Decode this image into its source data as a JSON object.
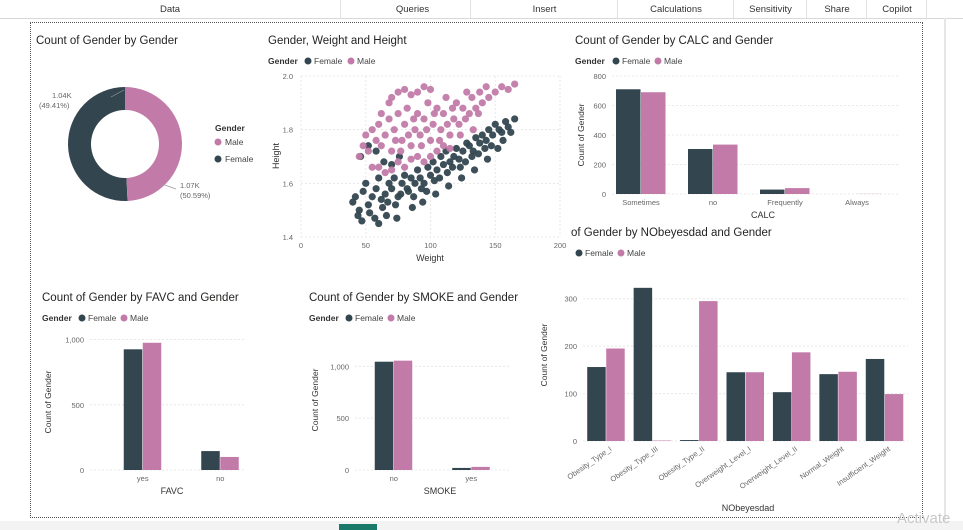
{
  "ribbon": {
    "tabs": [
      "Data",
      "Queries",
      "Insert",
      "Calculations",
      "Sensitivity",
      "Share",
      "Copilot"
    ]
  },
  "colors": {
    "female": "#33464f",
    "male": "#c27ba8",
    "grid": "#e8e8e8",
    "axis": "#666666"
  },
  "legend": {
    "title": "Gender",
    "female": "Female",
    "male": "Male"
  },
  "watermark": "Activate",
  "charts": {
    "donut": {
      "title": "Count of Gender by Gender",
      "male_label": "1.04K",
      "male_pct": "(49.41%)",
      "female_label": "1.07K",
      "female_pct": "(50.59%)"
    },
    "scatter": {
      "title": "Gender, Weight and Height",
      "xlabel": "Weight",
      "ylabel": "Height"
    },
    "calc": {
      "title": "Count of Gender by CALC and Gender",
      "xlabel": "CALC",
      "ylabel": "Count of Gender"
    },
    "favc": {
      "title": "Count of Gender by FAVC and Gender",
      "xlabel": "FAVC",
      "ylabel": "Count of Gender"
    },
    "smoke": {
      "title": "Count of Gender by SMOKE and Gender",
      "xlabel": "SMOKE",
      "ylabel": "Count of Gender"
    },
    "nob": {
      "title": "of Gender by NObeyesdad and Gender",
      "xlabel": "NObeyesdad",
      "ylabel": "Count of Gender"
    }
  },
  "chart_data": [
    {
      "type": "pie",
      "title": "Count of Gender by Gender",
      "categories": [
        "Male",
        "Female"
      ],
      "values": [
        1040,
        1070
      ],
      "legend": "right"
    },
    {
      "type": "scatter",
      "title": "Gender, Weight and Height",
      "xlabel": "Weight",
      "ylabel": "Height",
      "xlim": [
        0,
        200
      ],
      "ylim": [
        1.4,
        2.0
      ],
      "xticks": [
        0,
        50,
        100,
        150,
        200
      ],
      "yticks": [
        1.4,
        1.6,
        1.8,
        2.0
      ],
      "series": [
        {
          "name": "Female",
          "points": [
            [
              40,
              1.53
            ],
            [
              42,
              1.55
            ],
            [
              45,
              1.5
            ],
            [
              48,
              1.57
            ],
            [
              50,
              1.6
            ],
            [
              52,
              1.52
            ],
            [
              55,
              1.55
            ],
            [
              58,
              1.58
            ],
            [
              60,
              1.62
            ],
            [
              62,
              1.54
            ],
            [
              65,
              1.56
            ],
            [
              68,
              1.6
            ],
            [
              70,
              1.58
            ],
            [
              72,
              1.62
            ],
            [
              75,
              1.55
            ],
            [
              78,
              1.6
            ],
            [
              80,
              1.63
            ],
            [
              82,
              1.58
            ],
            [
              85,
              1.62
            ],
            [
              88,
              1.6
            ],
            [
              90,
              1.65
            ],
            [
              92,
              1.62
            ],
            [
              95,
              1.6
            ],
            [
              98,
              1.66
            ],
            [
              100,
              1.63
            ],
            [
              102,
              1.68
            ],
            [
              105,
              1.65
            ],
            [
              108,
              1.7
            ],
            [
              110,
              1.67
            ],
            [
              112,
              1.72
            ],
            [
              115,
              1.68
            ],
            [
              118,
              1.7
            ],
            [
              120,
              1.73
            ],
            [
              122,
              1.69
            ],
            [
              125,
              1.72
            ],
            [
              128,
              1.75
            ],
            [
              130,
              1.74
            ],
            [
              133,
              1.72
            ],
            [
              135,
              1.77
            ],
            [
              138,
              1.75
            ],
            [
              140,
              1.78
            ],
            [
              143,
              1.76
            ],
            [
              145,
              1.8
            ],
            [
              148,
              1.78
            ],
            [
              150,
              1.82
            ],
            [
              153,
              1.8
            ],
            [
              155,
              1.79
            ],
            [
              158,
              1.83
            ],
            [
              160,
              1.81
            ],
            [
              44,
              1.48
            ],
            [
              47,
              1.46
            ],
            [
              53,
              1.49
            ],
            [
              57,
              1.47
            ],
            [
              63,
              1.51
            ],
            [
              67,
              1.53
            ],
            [
              73,
              1.52
            ],
            [
              77,
              1.56
            ],
            [
              83,
              1.57
            ],
            [
              87,
              1.55
            ],
            [
              93,
              1.58
            ],
            [
              97,
              1.57
            ],
            [
              103,
              1.61
            ],
            [
              107,
              1.62
            ],
            [
              113,
              1.64
            ],
            [
              117,
              1.66
            ],
            [
              123,
              1.66
            ],
            [
              127,
              1.68
            ],
            [
              132,
              1.7
            ],
            [
              137,
              1.71
            ],
            [
              142,
              1.73
            ],
            [
              147,
              1.74
            ],
            [
              46,
              1.7
            ],
            [
              52,
              1.74
            ],
            [
              58,
              1.72
            ],
            [
              64,
              1.68
            ],
            [
              70,
              1.67
            ],
            [
              76,
              1.7
            ],
            [
              60,
              1.45
            ],
            [
              66,
              1.48
            ],
            [
              74,
              1.47
            ],
            [
              86,
              1.51
            ],
            [
              94,
              1.53
            ],
            [
              104,
              1.56
            ],
            [
              114,
              1.59
            ],
            [
              124,
              1.62
            ],
            [
              134,
              1.65
            ],
            [
              144,
              1.69
            ],
            [
              152,
              1.73
            ],
            [
              156,
              1.76
            ],
            [
              162,
              1.79
            ],
            [
              165,
              1.84
            ]
          ]
        },
        {
          "name": "Male",
          "points": [
            [
              45,
              1.7
            ],
            [
              48,
              1.74
            ],
            [
              50,
              1.78
            ],
            [
              52,
              1.72
            ],
            [
              55,
              1.8
            ],
            [
              58,
              1.76
            ],
            [
              60,
              1.82
            ],
            [
              62,
              1.74
            ],
            [
              65,
              1.78
            ],
            [
              68,
              1.84
            ],
            [
              70,
              1.72
            ],
            [
              72,
              1.8
            ],
            [
              75,
              1.86
            ],
            [
              78,
              1.76
            ],
            [
              80,
              1.82
            ],
            [
              82,
              1.88
            ],
            [
              85,
              1.74
            ],
            [
              88,
              1.8
            ],
            [
              90,
              1.86
            ],
            [
              92,
              1.78
            ],
            [
              95,
              1.84
            ],
            [
              98,
              1.9
            ],
            [
              100,
              1.76
            ],
            [
              102,
              1.82
            ],
            [
              105,
              1.88
            ],
            [
              108,
              1.8
            ],
            [
              110,
              1.86
            ],
            [
              112,
              1.92
            ],
            [
              115,
              1.78
            ],
            [
              118,
              1.84
            ],
            [
              120,
              1.9
            ],
            [
              122,
              1.82
            ],
            [
              125,
              1.88
            ],
            [
              128,
              1.94
            ],
            [
              130,
              1.86
            ],
            [
              132,
              1.92
            ],
            [
              135,
              1.88
            ],
            [
              138,
              1.94
            ],
            [
              140,
              1.9
            ],
            [
              143,
              1.96
            ],
            [
              145,
              1.92
            ],
            [
              150,
              1.94
            ],
            [
              155,
              1.96
            ],
            [
              160,
              1.95
            ],
            [
              165,
              1.97
            ],
            [
              70,
              1.92
            ],
            [
              75,
              1.94
            ],
            [
              80,
              1.95
            ],
            [
              85,
              1.93
            ],
            [
              90,
              1.94
            ],
            [
              95,
              1.96
            ],
            [
              100,
              1.95
            ],
            [
              60,
              1.66
            ],
            [
              65,
              1.64
            ],
            [
              70,
              1.65
            ],
            [
              75,
              1.68
            ],
            [
              80,
              1.66
            ],
            [
              85,
              1.69
            ],
            [
              90,
              1.7
            ],
            [
              95,
              1.68
            ],
            [
              100,
              1.7
            ],
            [
              105,
              1.72
            ],
            [
              110,
              1.74
            ],
            [
              115,
              1.73
            ],
            [
              55,
              1.66
            ],
            [
              62,
              1.86
            ],
            [
              68,
              1.9
            ],
            [
              73,
              1.76
            ],
            [
              77,
              1.72
            ],
            [
              83,
              1.78
            ],
            [
              87,
              1.84
            ],
            [
              93,
              1.74
            ],
            [
              97,
              1.8
            ],
            [
              103,
              1.86
            ],
            [
              107,
              1.76
            ],
            [
              113,
              1.82
            ],
            [
              117,
              1.88
            ],
            [
              123,
              1.78
            ],
            [
              127,
              1.84
            ],
            [
              133,
              1.8
            ],
            [
              137,
              1.86
            ]
          ]
        }
      ]
    },
    {
      "type": "bar",
      "title": "Count of Gender by CALC and Gender",
      "xlabel": "CALC",
      "ylabel": "Count of Gender",
      "categories": [
        "Sometimes",
        "no",
        "Frequently",
        "Always"
      ],
      "series": [
        {
          "name": "Female",
          "values": [
            710,
            305,
            30,
            0
          ]
        },
        {
          "name": "Male",
          "values": [
            690,
            335,
            40,
            1
          ]
        }
      ],
      "ylim": [
        0,
        800
      ],
      "yticks": [
        0,
        200,
        400,
        600,
        800
      ]
    },
    {
      "type": "bar",
      "title": "Count of Gender by FAVC and Gender",
      "xlabel": "FAVC",
      "ylabel": "Count of Gender",
      "categories": [
        "yes",
        "no"
      ],
      "series": [
        {
          "name": "Female",
          "values": [
            925,
            145
          ]
        },
        {
          "name": "Male",
          "values": [
            975,
            100
          ]
        }
      ],
      "ylim": [
        0,
        1050
      ],
      "yticks": [
        0,
        500,
        1000
      ],
      "ytick_labels": [
        "0",
        "500",
        "1,000"
      ]
    },
    {
      "type": "bar",
      "title": "Count of Gender by SMOKE and Gender",
      "xlabel": "SMOKE",
      "ylabel": "Count of Gender",
      "categories": [
        "no",
        "yes"
      ],
      "series": [
        {
          "name": "Female",
          "values": [
            1045,
            20
          ]
        },
        {
          "name": "Male",
          "values": [
            1055,
            30
          ]
        }
      ],
      "ylim": [
        0,
        1100
      ],
      "yticks": [
        0,
        500,
        1000
      ],
      "ytick_labels": [
        "0",
        "500",
        "1,000"
      ]
    },
    {
      "type": "bar",
      "title": "of Gender by NObeyesdad and Gender",
      "xlabel": "NObeyesdad",
      "ylabel": "Count of Gender",
      "categories": [
        "Obesity_Type_I",
        "Obesity_Type_III",
        "Obesity_Type_II",
        "Overweight_Level_I",
        "Overweight_Level_II",
        "Normal_Weight",
        "Insufficient_Weight"
      ],
      "series": [
        {
          "name": "Female",
          "values": [
            156,
            323,
            2,
            145,
            103,
            141,
            173
          ]
        },
        {
          "name": "Male",
          "values": [
            195,
            1,
            295,
            145,
            187,
            146,
            99
          ]
        }
      ],
      "ylim": [
        0,
        310
      ],
      "yticks": [
        0,
        100,
        200,
        300
      ]
    }
  ]
}
